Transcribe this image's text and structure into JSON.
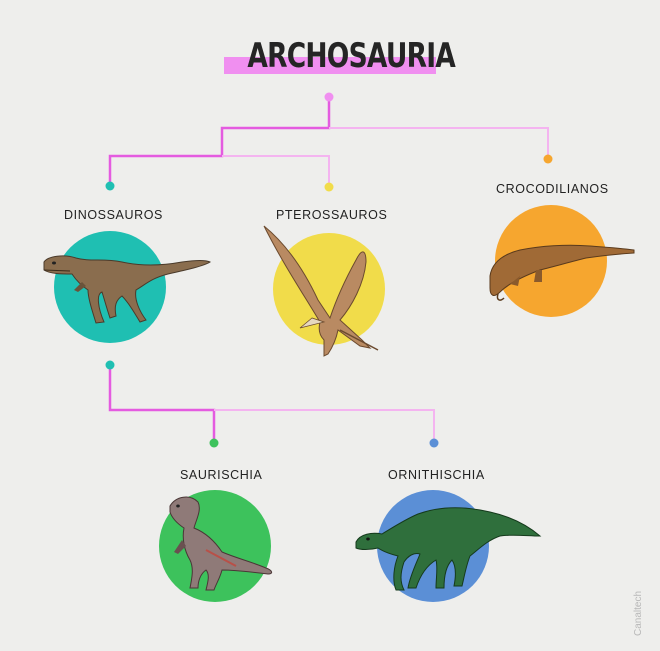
{
  "title": "ARCHOSAURIA",
  "nodes": {
    "dinossauros": "DINOSSAUROS",
    "pterossauros": "PTEROSSAUROS",
    "crocodilianos": "CROCODILIANOS",
    "saurischia": "SAURISCHIA",
    "ornithischia": "ORNITHISCHIA"
  },
  "colors": {
    "title_highlight": "#f08ff0",
    "main_line": "#e45be0",
    "light_line": "#f4b4f0",
    "dinossauros": "#1fbfb2",
    "pterossauros": "#f1dc4a",
    "crocodilianos": "#f6a62f",
    "saurischia": "#3dc25c",
    "ornithischia": "#5b8fd6"
  },
  "watermark": "Canaltech"
}
